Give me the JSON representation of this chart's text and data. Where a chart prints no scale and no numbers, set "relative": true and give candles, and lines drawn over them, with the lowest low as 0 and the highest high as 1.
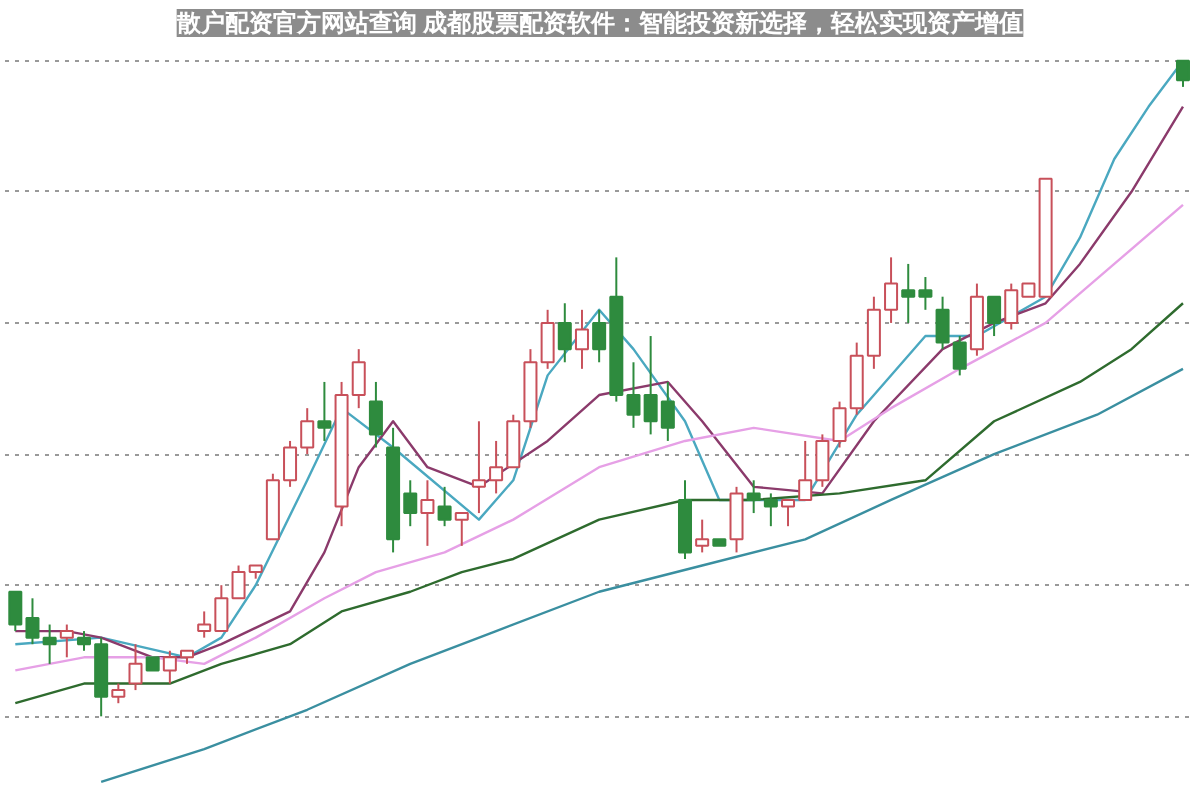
{
  "chart_data": {
    "type": "candlestick",
    "title": "散户配资官方网站查询 成都股票配资软件：智能投资新选择，轻松实现资产增值",
    "relative": true,
    "grid": "y",
    "categories": [
      null,
      null,
      null,
      null,
      null,
      null,
      null,
      null,
      null,
      null,
      null,
      null,
      null,
      null,
      null,
      null,
      null,
      null,
      null,
      null,
      null,
      null,
      null,
      null,
      null,
      null,
      null,
      null,
      null,
      null,
      null,
      null,
      null,
      null,
      null,
      null,
      null,
      null,
      null,
      null,
      null,
      null,
      null,
      null,
      null,
      null,
      null,
      null,
      null,
      null,
      null,
      null,
      null,
      null,
      null,
      null,
      null,
      null,
      null,
      null,
      null,
      null,
      null,
      null,
      null,
      null,
      null,
      null,
      null
    ],
    "ohlc": [
      [
        0.19,
        0.19,
        0.13,
        0.14
      ],
      [
        0.15,
        0.18,
        0.11,
        0.12
      ],
      [
        0.12,
        0.14,
        0.08,
        0.11
      ],
      [
        0.12,
        0.14,
        0.09,
        0.13
      ],
      [
        0.12,
        0.13,
        0.1,
        0.11
      ],
      [
        0.11,
        0.12,
        0.0,
        0.03
      ],
      [
        0.03,
        0.05,
        0.02,
        0.04
      ],
      [
        0.05,
        0.11,
        0.04,
        0.08
      ],
      [
        0.09,
        0.09,
        0.07,
        0.07
      ],
      [
        0.07,
        0.1,
        0.05,
        0.09
      ],
      [
        0.09,
        0.1,
        0.08,
        0.1
      ],
      [
        0.13,
        0.16,
        0.12,
        0.14
      ],
      [
        0.13,
        0.2,
        0.13,
        0.18
      ],
      [
        0.18,
        0.23,
        0.18,
        0.22
      ],
      [
        0.22,
        0.23,
        0.21,
        0.23
      ],
      [
        0.27,
        0.37,
        0.27,
        0.36
      ],
      [
        0.36,
        0.42,
        0.35,
        0.41
      ],
      [
        0.41,
        0.47,
        0.4,
        0.45
      ],
      [
        0.45,
        0.51,
        0.42,
        0.44
      ],
      [
        0.32,
        0.51,
        0.29,
        0.49
      ],
      [
        0.49,
        0.56,
        0.47,
        0.54
      ],
      [
        0.48,
        0.51,
        0.41,
        0.43
      ],
      [
        0.41,
        0.44,
        0.25,
        0.27
      ],
      [
        0.34,
        0.36,
        0.29,
        0.31
      ],
      [
        0.31,
        0.36,
        0.26,
        0.33
      ],
      [
        0.32,
        0.35,
        0.29,
        0.3
      ],
      [
        0.3,
        0.31,
        0.26,
        0.31
      ],
      [
        0.35,
        0.45,
        0.31,
        0.36
      ],
      [
        0.36,
        0.42,
        0.34,
        0.38
      ],
      [
        0.38,
        0.46,
        0.38,
        0.45
      ],
      [
        0.45,
        0.56,
        0.44,
        0.54
      ],
      [
        0.54,
        0.62,
        0.53,
        0.6
      ],
      [
        0.6,
        0.63,
        0.54,
        0.56
      ],
      [
        0.56,
        0.62,
        0.53,
        0.59
      ],
      [
        0.6,
        0.62,
        0.54,
        0.56
      ],
      [
        0.64,
        0.7,
        0.48,
        0.49
      ],
      [
        0.49,
        0.54,
        0.44,
        0.46
      ],
      [
        0.49,
        0.58,
        0.43,
        0.45
      ],
      [
        0.48,
        0.51,
        0.42,
        0.44
      ],
      [
        0.33,
        0.36,
        0.24,
        0.25
      ],
      [
        0.26,
        0.3,
        0.25,
        0.27
      ],
      [
        0.27,
        0.27,
        0.26,
        0.26
      ],
      [
        0.27,
        0.35,
        0.25,
        0.34
      ],
      [
        0.34,
        0.36,
        0.31,
        0.33
      ],
      [
        0.33,
        0.34,
        0.29,
        0.32
      ],
      [
        0.32,
        0.33,
        0.29,
        0.33
      ],
      [
        0.33,
        0.42,
        0.33,
        0.36
      ],
      [
        0.36,
        0.43,
        0.35,
        0.42
      ],
      [
        0.42,
        0.48,
        0.41,
        0.47
      ],
      [
        0.47,
        0.57,
        0.46,
        0.55
      ],
      [
        0.55,
        0.64,
        0.53,
        0.62
      ],
      [
        0.62,
        0.7,
        0.6,
        0.66
      ],
      [
        0.65,
        0.69,
        0.6,
        0.64
      ],
      [
        0.65,
        0.67,
        0.62,
        0.64
      ],
      [
        0.62,
        0.64,
        0.56,
        0.57
      ],
      [
        0.57,
        0.58,
        0.52,
        0.53
      ],
      [
        0.56,
        0.66,
        0.55,
        0.64
      ],
      [
        0.64,
        0.64,
        0.58,
        0.6
      ],
      [
        0.6,
        0.66,
        0.59,
        0.65
      ],
      [
        0.64,
        0.66,
        0.64,
        0.66
      ],
      [
        0.64,
        0.82,
        0.64,
        0.82
      ],
      null,
      null,
      null,
      null,
      null,
      null,
      null,
      [
        1.0,
        1.0,
        0.96,
        0.97
      ]
    ],
    "colors": [
      "#2e8b3e",
      "#2e8b3e",
      "#2e8b3e",
      "#c8505a",
      "#2e8b3e",
      "#2e8b3e",
      "#c8505a",
      "#c8505a",
      "#2e8b3e",
      "#c8505a",
      "#c8505a",
      "#c8505a",
      "#c8505a",
      "#c8505a",
      "#c8505a",
      "#c8505a",
      "#c8505a",
      "#c8505a",
      "#2e8b3e",
      "#c8505a",
      "#c8505a",
      "#2e8b3e",
      "#2e8b3e",
      "#2e8b3e",
      "#c8505a",
      "#2e8b3e",
      "#c8505a",
      "#c8505a",
      "#c8505a",
      "#c8505a",
      "#c8505a",
      "#c8505a",
      "#2e8b3e",
      "#c8505a",
      "#2e8b3e",
      "#2e8b3e",
      "#2e8b3e",
      "#2e8b3e",
      "#2e8b3e",
      "#2e8b3e",
      "#c8505a",
      "#2e8b3e",
      "#c8505a",
      "#2e8b3e",
      "#2e8b3e",
      "#c8505a",
      "#c8505a",
      "#c8505a",
      "#c8505a",
      "#c8505a",
      "#c8505a",
      "#c8505a",
      "#2e8b3e",
      "#2e8b3e",
      "#2e8b3e",
      "#2e8b3e",
      "#c8505a",
      "#2e8b3e",
      "#c8505a",
      "#c8505a",
      "#c8505a",
      null,
      null,
      null,
      null,
      null,
      null,
      null,
      "#2e8b3e"
    ],
    "series": [
      {
        "type": "line",
        "color": "#4aa8c0",
        "values": [
          0.11,
          null,
          null,
          null,
          null,
          0.12,
          null,
          null,
          null,
          null,
          0.09,
          null,
          0.12,
          null,
          0.2,
          null,
          null,
          0.36,
          null,
          0.47,
          null,
          null,
          0.41,
          null,
          null,
          null,
          null,
          0.3,
          null,
          0.36,
          null,
          0.52,
          null,
          null,
          0.62,
          null,
          0.56,
          null,
          null,
          0.45,
          null,
          0.33,
          null,
          null,
          null,
          null,
          0.33,
          null,
          null,
          0.46,
          null,
          null,
          null,
          0.58,
          null,
          null,
          0.58,
          null,
          null,
          null,
          0.64,
          null,
          0.73,
          null,
          0.85,
          null,
          0.93,
          null,
          1.0
        ]
      },
      {
        "type": "line",
        "color": "#8b3a6b",
        "values": [
          0.13,
          null,
          null,
          0.13,
          null,
          0.12,
          null,
          null,
          0.09,
          null,
          0.09,
          null,
          0.11,
          null,
          null,
          null,
          0.16,
          null,
          0.25,
          null,
          0.38,
          null,
          0.45,
          null,
          0.38,
          null,
          null,
          0.35,
          null,
          null,
          null,
          0.42,
          null,
          null,
          0.49,
          null,
          null,
          null,
          0.51,
          null,
          0.45,
          null,
          null,
          0.35,
          null,
          null,
          null,
          0.34,
          null,
          null,
          0.45,
          null,
          null,
          null,
          0.56,
          null,
          null,
          0.6,
          null,
          null,
          0.63,
          null,
          0.69,
          null,
          null,
          0.8,
          null,
          null,
          0.93
        ]
      },
      {
        "type": "line",
        "color": "#e6a0e6",
        "values": [
          0.07,
          null,
          null,
          null,
          0.09,
          null,
          null,
          null,
          0.09,
          null,
          null,
          0.08,
          null,
          null,
          0.12,
          null,
          null,
          null,
          0.18,
          null,
          null,
          0.22,
          null,
          null,
          null,
          0.25,
          null,
          null,
          null,
          0.3,
          null,
          null,
          null,
          null,
          0.38,
          null,
          null,
          null,
          null,
          0.42,
          null,
          null,
          null,
          0.44,
          null,
          null,
          null,
          null,
          0.42,
          null,
          null,
          0.47,
          null,
          null,
          null,
          0.53,
          null,
          null,
          null,
          null,
          0.6,
          null,
          null,
          null,
          0.69,
          null,
          null,
          null,
          0.78
        ]
      },
      {
        "type": "line",
        "color": "#2e6b2e",
        "values": [
          0.02,
          null,
          null,
          null,
          0.05,
          null,
          null,
          null,
          null,
          0.05,
          null,
          null,
          0.08,
          null,
          null,
          null,
          0.11,
          null,
          null,
          0.16,
          null,
          null,
          null,
          0.19,
          null,
          null,
          0.22,
          null,
          null,
          0.24,
          null,
          null,
          null,
          null,
          0.3,
          null,
          null,
          null,
          null,
          0.33,
          null,
          null,
          null,
          0.33,
          null,
          null,
          null,
          null,
          0.34,
          null,
          null,
          null,
          null,
          0.36,
          null,
          null,
          null,
          0.45,
          null,
          null,
          null,
          null,
          0.51,
          null,
          null,
          0.56,
          null,
          null,
          0.63
        ]
      },
      {
        "type": "line",
        "color": "#3a8fa0",
        "values": [
          null,
          null,
          null,
          null,
          null,
          -0.1,
          null,
          null,
          null,
          null,
          null,
          -0.05,
          null,
          null,
          null,
          null,
          null,
          0.01,
          null,
          null,
          null,
          null,
          null,
          0.08,
          null,
          null,
          null,
          null,
          0.13,
          null,
          null,
          null,
          null,
          null,
          0.19,
          null,
          null,
          null,
          null,
          null,
          0.23,
          null,
          null,
          null,
          null,
          null,
          0.27,
          null,
          null,
          null,
          null,
          0.33,
          null,
          null,
          null,
          null,
          null,
          0.4,
          null,
          null,
          null,
          null,
          null,
          0.46,
          null,
          null,
          null,
          null,
          0.53
        ]
      }
    ]
  }
}
